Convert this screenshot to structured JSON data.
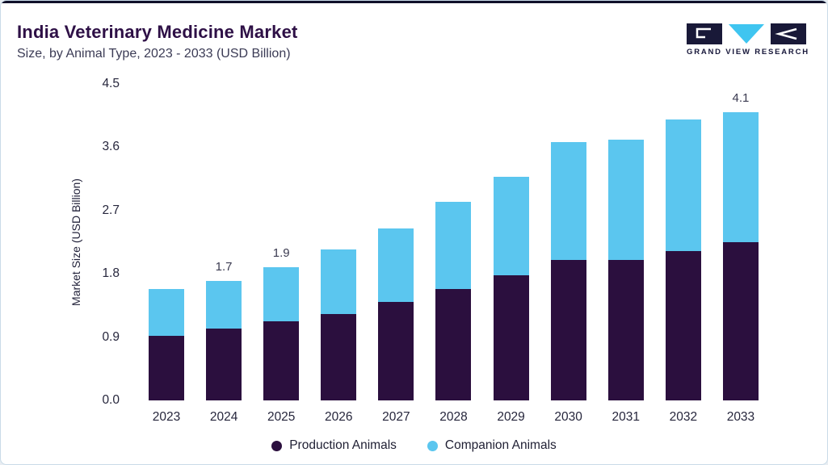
{
  "header": {
    "title": "India Veterinary Medicine Market",
    "subtitle": "Size, by Animal Type, 2023 - 2033 (USD Billion)",
    "logo_text": "GRAND VIEW RESEARCH"
  },
  "colors": {
    "production": "#2b0f3e",
    "companion": "#5bc6ef",
    "title": "#2e1046",
    "logo_dark": "#191938",
    "logo_cyan": "#3fc5f0",
    "top_line": "#10102a"
  },
  "chart_data": {
    "type": "bar",
    "stacked": true,
    "title": "India Veterinary Medicine Market",
    "subtitle": "Size, by Animal Type, 2023 - 2033 (USD Billion)",
    "xlabel": "",
    "ylabel": "Market Size (USD Billion)",
    "ylim": [
      0,
      4.5
    ],
    "ytick_labels": [
      "0.0",
      "0.9",
      "1.8",
      "2.7",
      "3.6",
      "4.5"
    ],
    "grid": false,
    "legend_position": "bottom",
    "categories": [
      "2023",
      "2024",
      "2025",
      "2026",
      "2027",
      "2028",
      "2029",
      "2030",
      "2031",
      "2032",
      "2033"
    ],
    "series": [
      {
        "name": "Production Animals",
        "color": "#2b0f3e",
        "values": [
          0.92,
          1.02,
          1.12,
          1.23,
          1.4,
          1.58,
          1.78,
          2.0,
          2.0,
          2.12,
          2.25
        ]
      },
      {
        "name": "Companion Animals",
        "color": "#5bc6ef",
        "values": [
          0.66,
          0.68,
          0.78,
          0.92,
          1.05,
          1.24,
          1.4,
          1.67,
          1.71,
          1.88,
          1.85
        ]
      }
    ],
    "totals": [
      1.58,
      1.7,
      1.9,
      2.15,
      2.45,
      2.82,
      3.18,
      3.67,
      3.71,
      4.0,
      4.1
    ],
    "totals_labels": [
      "",
      "1.7",
      "1.9",
      "",
      "",
      "",
      "",
      "",
      "",
      "",
      "4.1"
    ]
  }
}
